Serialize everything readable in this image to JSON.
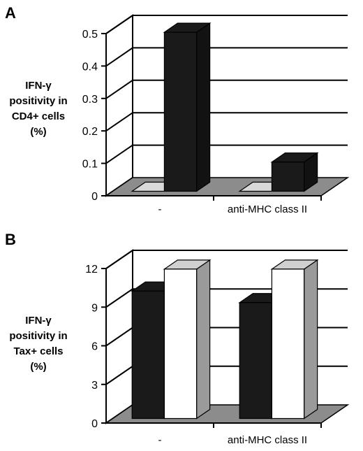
{
  "chart_data": [
    {
      "type": "bar",
      "panel": "A",
      "categories": [
        "-",
        "anti-MHC class II"
      ],
      "series": [
        {
          "values": [
            0.0,
            0.0
          ],
          "color": "#d9d9d9"
        },
        {
          "values": [
            0.49,
            0.09
          ],
          "color": "#1a1a1a"
        }
      ],
      "ylabel_lines": [
        "IFN-γ",
        "positivity in",
        "CD4+ cells",
        "(%)"
      ],
      "yticks": [
        "0",
        "0.1",
        "0.2",
        "0.3",
        "0.4",
        "0.5"
      ],
      "ylim": [
        0,
        0.5
      ],
      "grid": true,
      "three_d": true
    },
    {
      "type": "bar",
      "panel": "B",
      "categories": [
        "-",
        "anti-MHC class II"
      ],
      "series": [
        {
          "values": [
            9.9,
            9.0
          ],
          "color": "#1a1a1a"
        },
        {
          "values": [
            11.6,
            11.6
          ],
          "color": "#ffffff"
        }
      ],
      "ylabel_lines": [
        "IFN-γ",
        "positivity in",
        "Tax+ cells",
        "(%)"
      ],
      "yticks": [
        "0",
        "3",
        "6",
        "9",
        "12"
      ],
      "ylim": [
        0,
        12
      ],
      "grid": true,
      "three_d": true
    }
  ]
}
